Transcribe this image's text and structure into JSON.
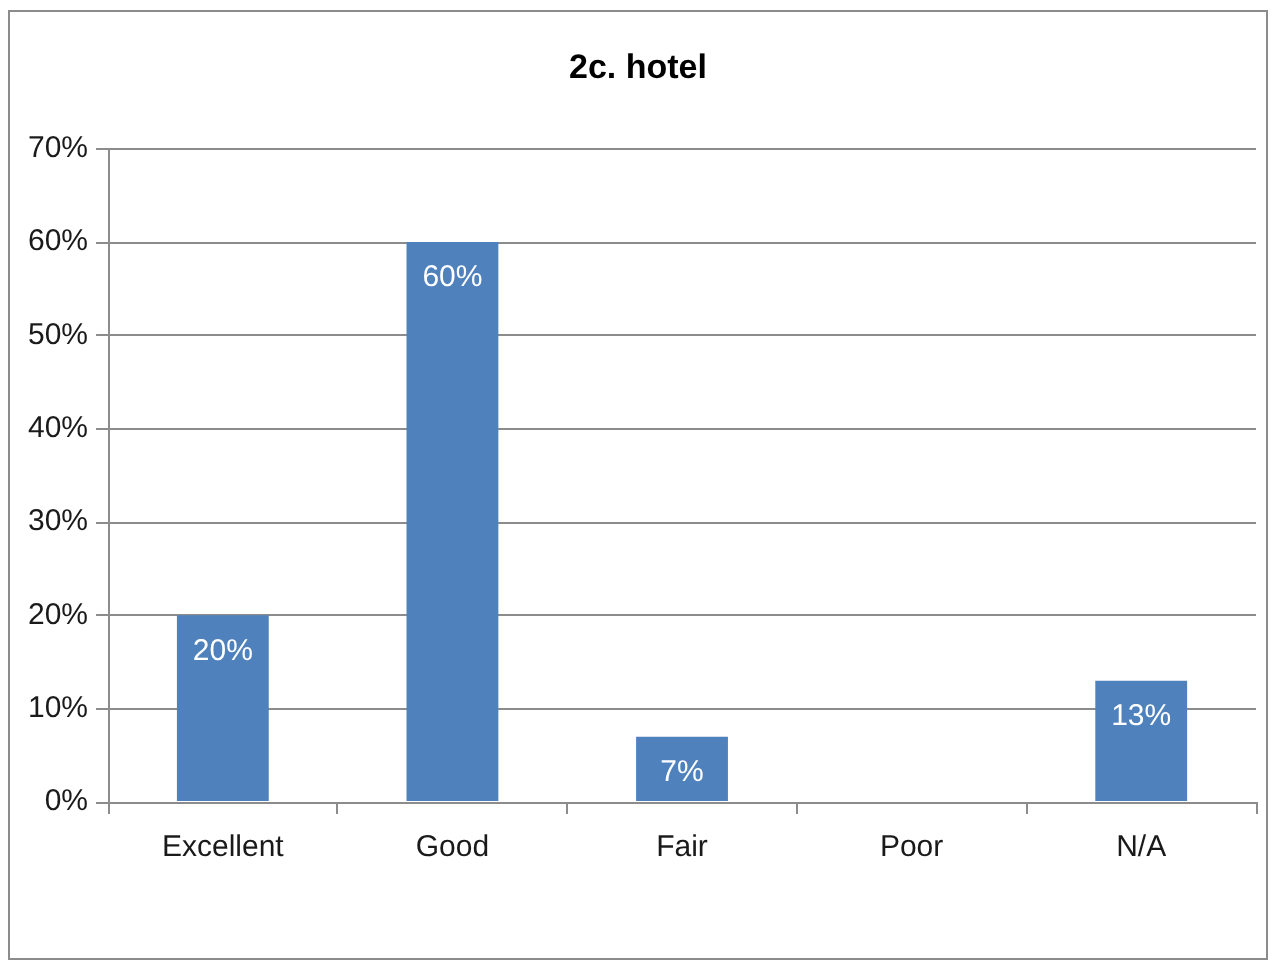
{
  "chart_data": {
    "type": "bar",
    "title": "2c. hotel",
    "categories": [
      "Excellent",
      "Good",
      "Fair",
      "Poor",
      "N/A"
    ],
    "values": [
      20,
      60,
      7,
      0,
      13
    ],
    "color": "#4f81bd",
    "value_labels": [
      "20%",
      "60%",
      "7%",
      null,
      "13%"
    ],
    "ylim": [
      0,
      70
    ],
    "yticks": [
      {
        "value": 0,
        "label": "0%"
      },
      {
        "value": 10,
        "label": "10%"
      },
      {
        "value": 20,
        "label": "20%"
      },
      {
        "value": 30,
        "label": "30%"
      },
      {
        "value": 40,
        "label": "40%"
      },
      {
        "value": 50,
        "label": "50%"
      },
      {
        "value": 60,
        "label": "60%"
      },
      {
        "value": 70,
        "label": "70%"
      }
    ],
    "grid": "y",
    "legend": false
  }
}
